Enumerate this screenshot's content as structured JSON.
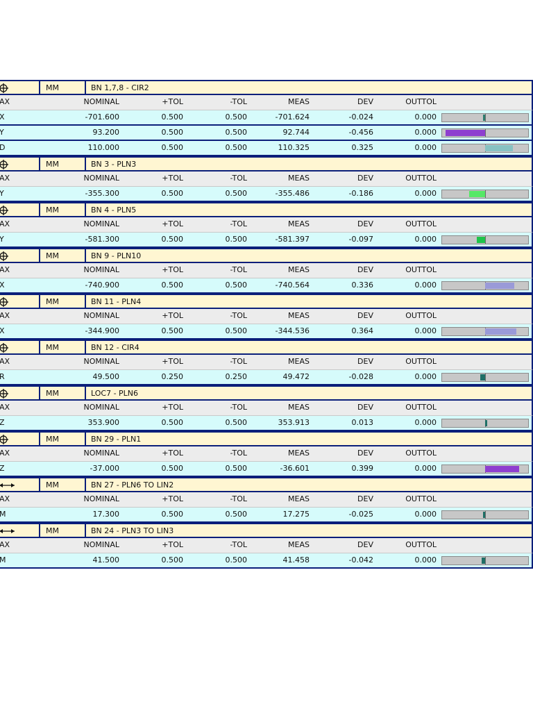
{
  "columns": {
    "ax": "AX",
    "nominal": "NOMINAL",
    "plus_tol": "+TOL",
    "minus_tol": "-TOL",
    "meas": "MEAS",
    "dev": "DEV",
    "outtol": "OUTTOL"
  },
  "features": [
    {
      "icon": "position-icon",
      "units": "MM",
      "name": "BN 1,7,8 - CIR2",
      "rows": [
        {
          "ax": "X",
          "nominal": "-701.600",
          "plus_tol": "0.500",
          "minus_tol": "0.500",
          "meas": "-701.624",
          "dev": "-0.024",
          "outtol": "0.000",
          "bar_dev_fraction": -0.048,
          "bar_color": "#2e7d6e"
        },
        {
          "ax": "Y",
          "nominal": "93.200",
          "plus_tol": "0.500",
          "minus_tol": "0.500",
          "meas": "92.744",
          "dev": "-0.456",
          "outtol": "0.000",
          "bar_dev_fraction": -0.912,
          "bar_color": "#8e3fcf"
        },
        {
          "ax": "D",
          "nominal": "110.000",
          "plus_tol": "0.500",
          "minus_tol": "0.500",
          "meas": "110.325",
          "dev": "0.325",
          "outtol": "0.000",
          "bar_dev_fraction": 0.65,
          "bar_color": "#87c2c2"
        }
      ]
    },
    {
      "icon": "position-icon",
      "units": "MM",
      "name": "BN 3 - PLN3",
      "rows": [
        {
          "ax": "Y",
          "nominal": "-355.300",
          "plus_tol": "0.500",
          "minus_tol": "0.500",
          "meas": "-355.486",
          "dev": "-0.186",
          "outtol": "0.000",
          "bar_dev_fraction": -0.372,
          "bar_color": "#55e866"
        }
      ]
    },
    {
      "icon": "position-icon",
      "units": "MM",
      "name": "BN 4 - PLN5",
      "rows": [
        {
          "ax": "Y",
          "nominal": "-581.300",
          "plus_tol": "0.500",
          "minus_tol": "0.500",
          "meas": "-581.397",
          "dev": "-0.097",
          "outtol": "0.000",
          "bar_dev_fraction": -0.194,
          "bar_color": "#1ec44a"
        }
      ]
    },
    {
      "icon": "position-icon",
      "units": "MM",
      "name": "BN 9 - PLN10",
      "rows": [
        {
          "ax": "X",
          "nominal": "-740.900",
          "plus_tol": "0.500",
          "minus_tol": "0.500",
          "meas": "-740.564",
          "dev": "0.336",
          "outtol": "0.000",
          "bar_dev_fraction": 0.672,
          "bar_color": "#9a9ad8"
        }
      ]
    },
    {
      "icon": "position-icon",
      "units": "MM",
      "name": "BN 11 - PLN4",
      "rows": [
        {
          "ax": "X",
          "nominal": "-344.900",
          "plus_tol": "0.500",
          "minus_tol": "0.500",
          "meas": "-344.536",
          "dev": "0.364",
          "outtol": "0.000",
          "bar_dev_fraction": 0.728,
          "bar_color": "#9a9ad8"
        }
      ]
    },
    {
      "icon": "position-icon",
      "units": "MM",
      "name": "BN 12 - CIR4",
      "rows": [
        {
          "ax": "R",
          "nominal": "49.500",
          "plus_tol": "0.250",
          "minus_tol": "0.250",
          "meas": "49.472",
          "dev": "-0.028",
          "outtol": "0.000",
          "bar_dev_fraction": -0.112,
          "bar_color": "#1f6f66"
        }
      ]
    },
    {
      "icon": "position-icon",
      "units": "MM",
      "name": "LOC7 - PLN6",
      "rows": [
        {
          "ax": "Z",
          "nominal": "353.900",
          "plus_tol": "0.500",
          "minus_tol": "0.500",
          "meas": "353.913",
          "dev": "0.013",
          "outtol": "0.000",
          "bar_dev_fraction": 0.026,
          "bar_color": "#1f6f66"
        }
      ]
    },
    {
      "icon": "position-icon",
      "units": "MM",
      "name": "BN 29 - PLN1",
      "rows": [
        {
          "ax": "Z",
          "nominal": "-37.000",
          "plus_tol": "0.500",
          "minus_tol": "0.500",
          "meas": "-36.601",
          "dev": "0.399",
          "outtol": "0.000",
          "bar_dev_fraction": 0.798,
          "bar_color": "#8e3fcf"
        }
      ]
    },
    {
      "icon": "distance-icon",
      "units": "MM",
      "name": "BN 27 - PLN6 TO LIN2",
      "rows": [
        {
          "ax": "M",
          "nominal": "17.300",
          "plus_tol": "0.500",
          "minus_tol": "0.500",
          "meas": "17.275",
          "dev": "-0.025",
          "outtol": "0.000",
          "bar_dev_fraction": -0.05,
          "bar_color": "#1f6f66"
        }
      ]
    },
    {
      "icon": "distance-icon",
      "units": "MM",
      "name": "BN 24 - PLN3 TO LIN3",
      "rows": [
        {
          "ax": "M",
          "nominal": "41.500",
          "plus_tol": "0.500",
          "minus_tol": "0.500",
          "meas": "41.458",
          "dev": "-0.042",
          "outtol": "0.000",
          "bar_dev_fraction": -0.084,
          "bar_color": "#1f6f66"
        }
      ]
    }
  ]
}
